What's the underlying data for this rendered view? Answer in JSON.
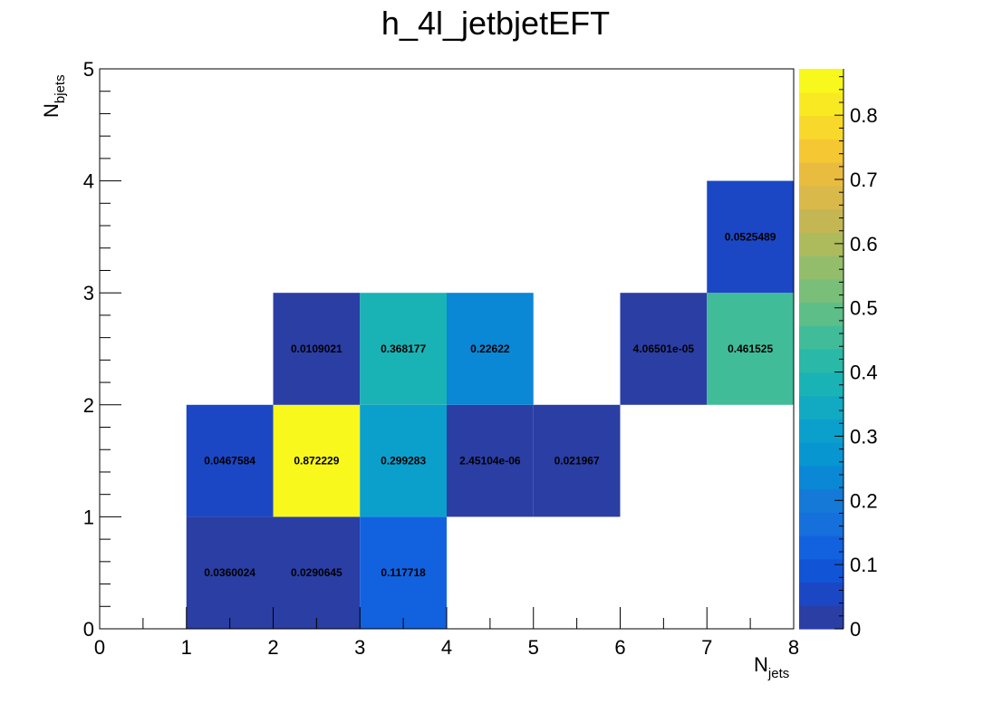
{
  "chart_data": {
    "type": "heatmap",
    "title": "h_4l_jetbjetEFT",
    "xlabel": {
      "main": "N",
      "sub": "jets"
    },
    "ylabel": {
      "main": "N",
      "sub": "bjets"
    },
    "xlim": [
      0,
      8
    ],
    "ylim": [
      0,
      5
    ],
    "x_ticks": [
      "0",
      "1",
      "2",
      "3",
      "4",
      "5",
      "6",
      "7",
      "8"
    ],
    "y_ticks": [
      "0",
      "1",
      "2",
      "3",
      "4",
      "5"
    ],
    "colorbar": {
      "min": 0,
      "max": 0.872229,
      "ticks": [
        "0",
        "0.1",
        "0.2",
        "0.3",
        "0.4",
        "0.5",
        "0.6",
        "0.7",
        "0.8"
      ],
      "palette": [
        "#2a3ea4",
        "#1c47c4",
        "#1254d6",
        "#1262df",
        "#1670dc",
        "#1479d7",
        "#0a87d5",
        "#0796d0",
        "#0ba0cc",
        "#12aac2",
        "#1ab3b5",
        "#2ab8a8",
        "#41bc99",
        "#5dbe88",
        "#79be79",
        "#94bd6b",
        "#adbb5d",
        "#c4b753",
        "#d9b949",
        "#e9bc3f",
        "#f4c733",
        "#f8d82a",
        "#f9e922",
        "#f8f81c"
      ]
    },
    "grid": false,
    "cells": [
      {
        "x": [
          1,
          2
        ],
        "y": [
          0,
          1
        ],
        "value": 0.0360024,
        "label": "0.0360024"
      },
      {
        "x": [
          2,
          3
        ],
        "y": [
          0,
          1
        ],
        "value": 0.0290645,
        "label": "0.0290645"
      },
      {
        "x": [
          3,
          4
        ],
        "y": [
          0,
          1
        ],
        "value": 0.117718,
        "label": "0.117718"
      },
      {
        "x": [
          1,
          2
        ],
        "y": [
          1,
          2
        ],
        "value": 0.0467584,
        "label": "0.0467584"
      },
      {
        "x": [
          2,
          3
        ],
        "y": [
          1,
          2
        ],
        "value": 0.872229,
        "label": "0.872229"
      },
      {
        "x": [
          3,
          4
        ],
        "y": [
          1,
          2
        ],
        "value": 0.299283,
        "label": "0.299283"
      },
      {
        "x": [
          4,
          5
        ],
        "y": [
          1,
          2
        ],
        "value": 2.45104e-06,
        "label": "2.45104e-06"
      },
      {
        "x": [
          5,
          6
        ],
        "y": [
          1,
          2
        ],
        "value": 0.021967,
        "label": "0.021967"
      },
      {
        "x": [
          2,
          3
        ],
        "y": [
          2,
          3
        ],
        "value": 0.0109021,
        "label": "0.0109021"
      },
      {
        "x": [
          3,
          4
        ],
        "y": [
          2,
          3
        ],
        "value": 0.368177,
        "label": "0.368177"
      },
      {
        "x": [
          4,
          5
        ],
        "y": [
          2,
          3
        ],
        "value": 0.22622,
        "label": "0.22622"
      },
      {
        "x": [
          6,
          7
        ],
        "y": [
          2,
          3
        ],
        "value": 4.06501e-05,
        "label": "4.06501e-05"
      },
      {
        "x": [
          7,
          8
        ],
        "y": [
          2,
          3
        ],
        "value": 0.461525,
        "label": "0.461525"
      },
      {
        "x": [
          7,
          8
        ],
        "y": [
          3,
          4
        ],
        "value": 0.0525489,
        "label": "0.0525489"
      }
    ]
  }
}
